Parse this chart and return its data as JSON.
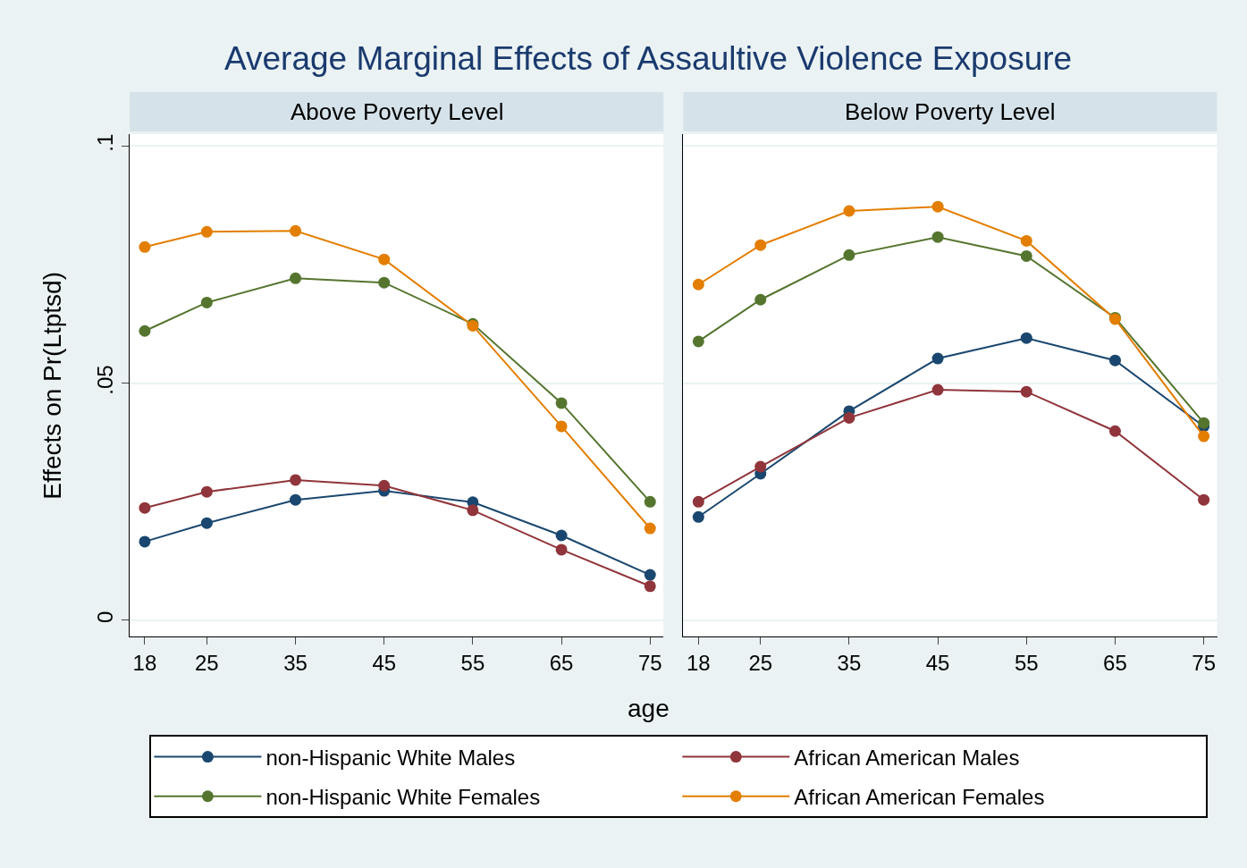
{
  "chart_data": [
    {
      "type": "line",
      "title": "Average Marginal Effects of Assaultive Violence Exposure",
      "subtitle": "Above Poverty Level",
      "xlabel": "age",
      "ylabel": "Effects on Pr(Ltptsd)",
      "x": [
        18,
        25,
        35,
        45,
        55,
        65,
        75
      ],
      "xlim": [
        16.3,
        76.5
      ],
      "xticks": [
        18,
        25,
        35,
        45,
        55,
        65,
        75
      ],
      "ylim": [
        -0.0034,
        0.1025
      ],
      "yticks": [
        0,
        {
          "value": 0.05,
          "label": ".05"
        },
        {
          "value": 0.1,
          "label": ".1"
        }
      ],
      "grid": "y",
      "legend": "bottom",
      "marker": "circle",
      "line_style": "solid",
      "series": [
        {
          "name": "non-Hispanic White Males",
          "color": "#1a476f",
          "values": [
            0.0166,
            0.0205,
            0.0254,
            0.0273,
            0.0249,
            0.0179,
            0.0096
          ]
        },
        {
          "name": "African American Males",
          "color": "#90353b",
          "values": [
            0.0237,
            0.0271,
            0.0296,
            0.0284,
            0.0232,
            0.0149,
            0.0072
          ]
        },
        {
          "name": "non-Hispanic White Females",
          "color": "#55752f",
          "values": [
            0.061,
            0.067,
            0.0721,
            0.0712,
            0.0625,
            0.0458,
            0.025
          ]
        },
        {
          "name": "African American Females",
          "color": "#e37e00",
          "values": [
            0.0787,
            0.0819,
            0.0821,
            0.0761,
            0.0621,
            0.0409,
            0.0194
          ]
        }
      ]
    },
    {
      "type": "line",
      "subtitle": "Below Poverty Level",
      "x": [
        18,
        25,
        35,
        45,
        55,
        65,
        75
      ],
      "xlim": [
        16.3,
        76.5
      ],
      "xticks": [
        18,
        25,
        35,
        45,
        55,
        65,
        75
      ],
      "ylim": [
        -0.0034,
        0.1025
      ],
      "yticks": [
        0,
        0.05,
        0.1
      ],
      "tick_labels": "x",
      "grid": "y",
      "marker": "circle",
      "line_style": "solid",
      "series": [
        {
          "color": "#1a476f",
          "values": [
            0.0218,
            0.0309,
            0.0441,
            0.0552,
            0.0595,
            0.0548,
            0.0409
          ]
        },
        {
          "color": "#90353b",
          "values": [
            0.025,
            0.0324,
            0.0427,
            0.0486,
            0.0482,
            0.0399,
            0.0254
          ]
        },
        {
          "color": "#55752f",
          "values": [
            0.0588,
            0.0676,
            0.077,
            0.0808,
            0.0768,
            0.0638,
            0.0416
          ]
        },
        {
          "color": "#e37e00",
          "values": [
            0.0708,
            0.0791,
            0.0863,
            0.0872,
            0.08,
            0.0635,
            0.0388
          ]
        }
      ]
    }
  ]
}
